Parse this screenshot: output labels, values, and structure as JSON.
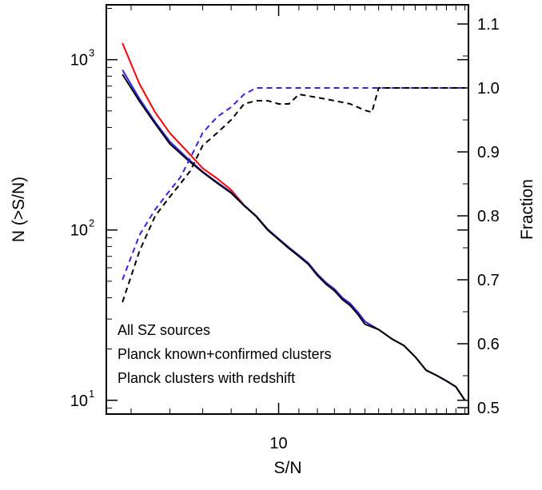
{
  "chart_data": {
    "type": "line",
    "xlabel": "S/N",
    "ylabel_left": "N (>S/N)",
    "ylabel_right": "Fraction",
    "x_scale": "log",
    "y_left_scale": "log",
    "x_ticks": [
      {
        "value": 10,
        "label": "10"
      }
    ],
    "y_left_ticks": [
      {
        "value": 10,
        "base": "10",
        "exp": "1"
      },
      {
        "value": 100,
        "base": "10",
        "exp": "2"
      },
      {
        "value": 1000,
        "base": "10",
        "exp": "3"
      }
    ],
    "y_right_ticks": [
      {
        "value": 0.5,
        "label": "0.5"
      },
      {
        "value": 0.6,
        "label": "0.6"
      },
      {
        "value": 0.7,
        "label": "0.7"
      },
      {
        "value": 0.8,
        "label": "0.8"
      },
      {
        "value": 0.9,
        "label": "0.9"
      },
      {
        "value": 1.0,
        "label": "1.0"
      },
      {
        "value": 1.1,
        "label": "1.1"
      }
    ],
    "xlim": [
      4.45,
      24.4
    ],
    "ylim_left": [
      8.3,
      2100
    ],
    "ylim_right": [
      0.49,
      1.13
    ],
    "legend_position": "bottom-left",
    "series": [
      {
        "name": "All SZ sources",
        "color": "#ff0000",
        "axis": "left",
        "style": "solid",
        "x": [
          4.8,
          5.2,
          5.6,
          6.0,
          6.5,
          7.0,
          7.5,
          8.0,
          8.5,
          9.0,
          9.5,
          10.0,
          10.5,
          11.0,
          11.5,
          12.0,
          12.5,
          13.0,
          13.5,
          14.0,
          14.5,
          15.0,
          16.0,
          17.0,
          18.0,
          19.0,
          20.0,
          21.0,
          22.0,
          23.0,
          24.0
        ],
        "values": [
          1250,
          720,
          490,
          370,
          290,
          230,
          200,
          172,
          140,
          120,
          100,
          88,
          78,
          71,
          63,
          55,
          49,
          44,
          40,
          36,
          33,
          29,
          26,
          23,
          21,
          18,
          15,
          14,
          13,
          12,
          10
        ]
      },
      {
        "name": "Planck known+confirmed clusters",
        "color": "#3322ee",
        "axis": "left",
        "style": "solid",
        "x": [
          4.8,
          5.2,
          5.6,
          6.0,
          6.5,
          7.0,
          7.5,
          8.0,
          8.5,
          9.0,
          9.5,
          10.0,
          10.5,
          11.0,
          11.5,
          12.0,
          12.5,
          13.0,
          13.5,
          14.0,
          14.5,
          15.0,
          16.0,
          17.0,
          18.0,
          19.0,
          20.0,
          21.0,
          22.0,
          23.0,
          24.0
        ],
        "values": [
          870,
          590,
          430,
          330,
          265,
          220,
          190,
          167,
          140,
          121,
          101,
          89,
          79,
          71,
          64,
          55,
          49,
          45,
          40,
          37,
          33,
          29,
          26,
          23,
          21,
          18,
          15,
          14,
          13,
          12,
          10
        ]
      },
      {
        "name": "Planck clusters with redshift",
        "color": "#000000",
        "axis": "left",
        "style": "solid",
        "x": [
          4.8,
          5.2,
          5.6,
          6.0,
          6.5,
          7.0,
          7.5,
          8.0,
          8.5,
          9.0,
          9.5,
          10.0,
          10.5,
          11.0,
          11.5,
          12.0,
          12.5,
          13.0,
          13.5,
          14.0,
          14.5,
          15.0,
          16.0,
          17.0,
          18.0,
          19.0,
          20.0,
          21.0,
          22.0,
          23.0,
          24.0
        ],
        "values": [
          820,
          570,
          420,
          320,
          260,
          218,
          188,
          165,
          139,
          120,
          100,
          88,
          78,
          70,
          63,
          54,
          48,
          44,
          39,
          36,
          32,
          28,
          26,
          23,
          21,
          18,
          15,
          14,
          13,
          12,
          10
        ]
      },
      {
        "name": "",
        "color": "#3322ee",
        "axis": "right",
        "style": "dashed",
        "x": [
          4.8,
          5.2,
          5.6,
          6.0,
          6.3,
          6.6,
          7.0,
          7.5,
          8.0,
          8.5,
          9.0,
          9.5,
          10.0,
          10.5,
          11.0,
          12.0,
          13.0,
          14.0,
          15.0,
          16.0,
          17.0,
          18.0,
          20.0,
          22.0,
          24.0
        ],
        "values": [
          0.7,
          0.77,
          0.81,
          0.84,
          0.86,
          0.89,
          0.93,
          0.955,
          0.97,
          0.99,
          1.0,
          1.0,
          1.0,
          1.0,
          1.0,
          1.0,
          1.0,
          1.0,
          1.0,
          1.0,
          1.0,
          1.0,
          1.0,
          1.0,
          1.0
        ]
      },
      {
        "name": "",
        "color": "#000000",
        "axis": "right",
        "style": "dashed",
        "x": [
          4.8,
          5.2,
          5.6,
          6.0,
          6.3,
          6.6,
          7.0,
          7.5,
          8.0,
          8.5,
          9.0,
          9.5,
          10.0,
          10.5,
          11.0,
          12.0,
          13.0,
          14.0,
          15.0,
          15.5,
          16.0,
          17.0,
          18.0,
          20.0,
          22.0,
          24.0
        ],
        "values": [
          0.665,
          0.745,
          0.8,
          0.83,
          0.85,
          0.87,
          0.91,
          0.93,
          0.95,
          0.975,
          0.98,
          0.98,
          0.975,
          0.975,
          0.99,
          0.985,
          0.98,
          0.975,
          0.965,
          0.962,
          1.0,
          1.0,
          1.0,
          1.0,
          1.0,
          1.0
        ]
      }
    ],
    "legend": [
      {
        "label": "All SZ sources",
        "color": "#ff0000"
      },
      {
        "label": "Planck known+confirmed clusters",
        "color": "#3322ee"
      },
      {
        "label": "Planck clusters with redshift",
        "color": "#000000"
      }
    ]
  }
}
